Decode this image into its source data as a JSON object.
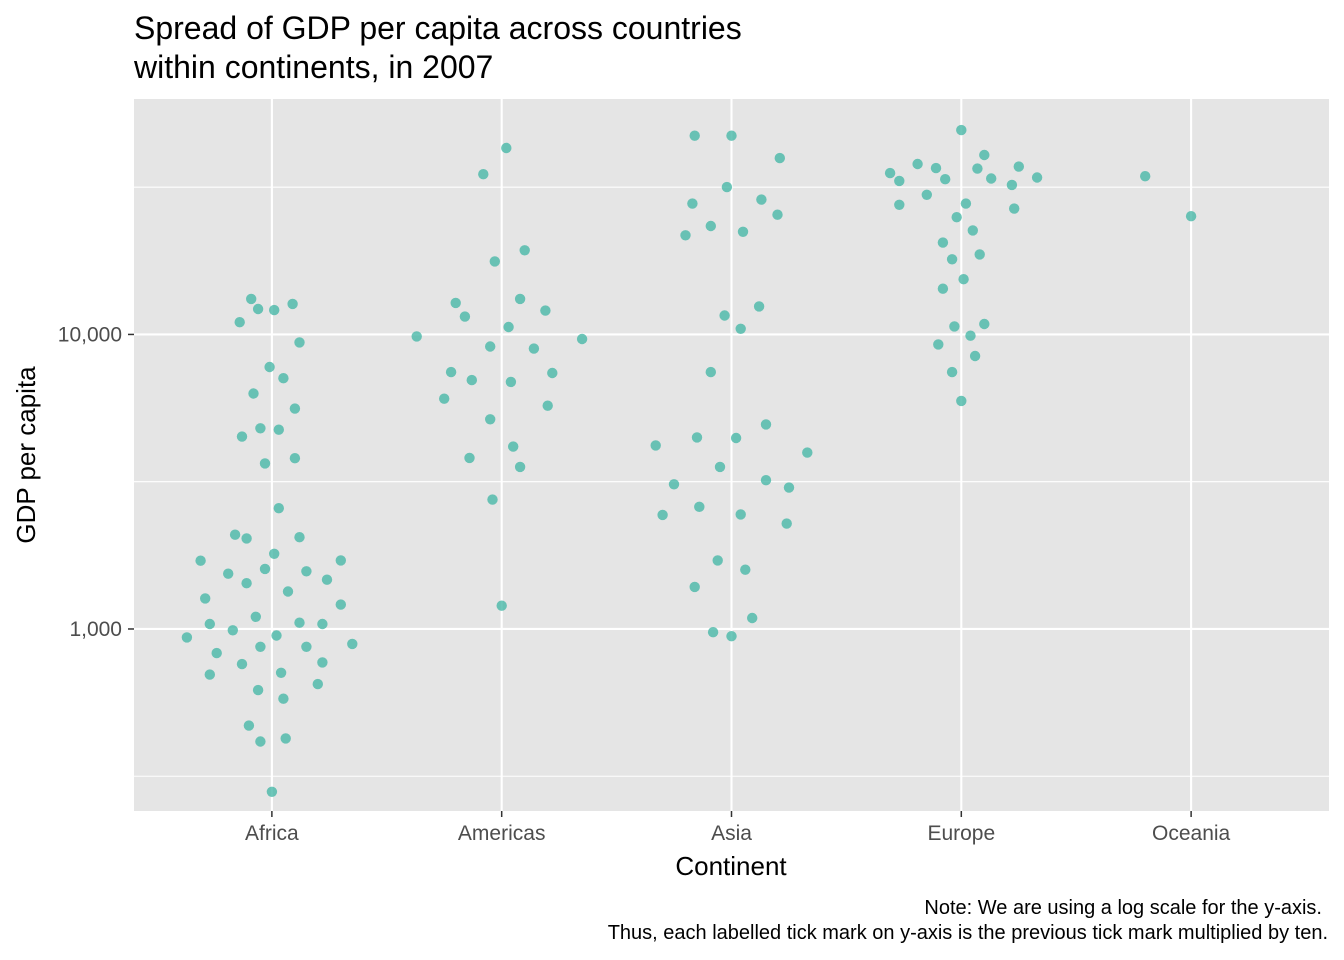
{
  "chart_data": {
    "type": "scatter",
    "title_line1": "Spread of GDP per capita across countries",
    "title_line2": "within continents, in 2007",
    "xlabel": "Continent",
    "ylabel": "GDP per capita",
    "y_scale": "log10",
    "ylim": [
      241,
      63000
    ],
    "y_major_ticks": [
      1000,
      10000
    ],
    "y_minor_ticks": [
      316.2,
      3162.3,
      31622.8
    ],
    "y_tick_labels": [
      "1,000",
      "10,000"
    ],
    "categories": [
      "Africa",
      "Americas",
      "Asia",
      "Europe",
      "Oceania"
    ],
    "point_color": "#3db4a3",
    "panel_background": "#e5e5e5",
    "grid": true,
    "jitter": true,
    "points": [
      {
        "continent": "Africa",
        "offset": -0.37,
        "gdp": 936
      },
      {
        "continent": "Africa",
        "offset": -0.31,
        "gdp": 1705
      },
      {
        "continent": "Africa",
        "offset": -0.29,
        "gdp": 1270
      },
      {
        "continent": "Africa",
        "offset": -0.27,
        "gdp": 1040
      },
      {
        "continent": "Africa",
        "offset": -0.27,
        "gdp": 700
      },
      {
        "continent": "Africa",
        "offset": -0.24,
        "gdp": 828
      },
      {
        "continent": "Africa",
        "offset": -0.19,
        "gdp": 1540
      },
      {
        "continent": "Africa",
        "offset": -0.17,
        "gdp": 990
      },
      {
        "continent": "Africa",
        "offset": -0.16,
        "gdp": 2090
      },
      {
        "continent": "Africa",
        "offset": -0.14,
        "gdp": 11000
      },
      {
        "continent": "Africa",
        "offset": -0.13,
        "gdp": 4500
      },
      {
        "continent": "Africa",
        "offset": -0.13,
        "gdp": 760
      },
      {
        "continent": "Africa",
        "offset": -0.11,
        "gdp": 2030
      },
      {
        "continent": "Africa",
        "offset": -0.11,
        "gdp": 1430
      },
      {
        "continent": "Africa",
        "offset": -0.1,
        "gdp": 470
      },
      {
        "continent": "Africa",
        "offset": -0.09,
        "gdp": 13200
      },
      {
        "continent": "Africa",
        "offset": -0.08,
        "gdp": 6300
      },
      {
        "continent": "Africa",
        "offset": -0.07,
        "gdp": 1100
      },
      {
        "continent": "Africa",
        "offset": -0.06,
        "gdp": 12200
      },
      {
        "continent": "Africa",
        "offset": -0.06,
        "gdp": 620
      },
      {
        "continent": "Africa",
        "offset": -0.05,
        "gdp": 4800
      },
      {
        "continent": "Africa",
        "offset": -0.05,
        "gdp": 870
      },
      {
        "continent": "Africa",
        "offset": -0.05,
        "gdp": 415
      },
      {
        "continent": "Africa",
        "offset": -0.03,
        "gdp": 3650
      },
      {
        "continent": "Africa",
        "offset": -0.03,
        "gdp": 1600
      },
      {
        "continent": "Africa",
        "offset": -0.01,
        "gdp": 7750
      },
      {
        "continent": "Africa",
        "offset": 0.0,
        "gdp": 280
      },
      {
        "continent": "Africa",
        "offset": 0.01,
        "gdp": 12100
      },
      {
        "continent": "Africa",
        "offset": 0.01,
        "gdp": 1800
      },
      {
        "continent": "Africa",
        "offset": 0.02,
        "gdp": 950
      },
      {
        "continent": "Africa",
        "offset": 0.03,
        "gdp": 4750
      },
      {
        "continent": "Africa",
        "offset": 0.03,
        "gdp": 2570
      },
      {
        "continent": "Africa",
        "offset": 0.04,
        "gdp": 710
      },
      {
        "continent": "Africa",
        "offset": 0.05,
        "gdp": 7100
      },
      {
        "continent": "Africa",
        "offset": 0.05,
        "gdp": 580
      },
      {
        "continent": "Africa",
        "offset": 0.06,
        "gdp": 425
      },
      {
        "continent": "Africa",
        "offset": 0.07,
        "gdp": 1340
      },
      {
        "continent": "Africa",
        "offset": 0.09,
        "gdp": 12700
      },
      {
        "continent": "Africa",
        "offset": 0.1,
        "gdp": 5600
      },
      {
        "continent": "Africa",
        "offset": 0.1,
        "gdp": 3800
      },
      {
        "continent": "Africa",
        "offset": 0.12,
        "gdp": 9400
      },
      {
        "continent": "Africa",
        "offset": 0.12,
        "gdp": 2050
      },
      {
        "continent": "Africa",
        "offset": 0.12,
        "gdp": 1050
      },
      {
        "continent": "Africa",
        "offset": 0.15,
        "gdp": 1570
      },
      {
        "continent": "Africa",
        "offset": 0.15,
        "gdp": 870
      },
      {
        "continent": "Africa",
        "offset": 0.2,
        "gdp": 650
      },
      {
        "continent": "Africa",
        "offset": 0.22,
        "gdp": 1040
      },
      {
        "continent": "Africa",
        "offset": 0.22,
        "gdp": 770
      },
      {
        "continent": "Africa",
        "offset": 0.24,
        "gdp": 1470
      },
      {
        "continent": "Africa",
        "offset": 0.3,
        "gdp": 1210
      },
      {
        "continent": "Africa",
        "offset": 0.3,
        "gdp": 1710
      },
      {
        "continent": "Africa",
        "offset": 0.35,
        "gdp": 890
      },
      {
        "continent": "Americas",
        "offset": -0.37,
        "gdp": 9850
      },
      {
        "continent": "Americas",
        "offset": -0.25,
        "gdp": 6050
      },
      {
        "continent": "Americas",
        "offset": -0.22,
        "gdp": 7450
      },
      {
        "continent": "Americas",
        "offset": -0.2,
        "gdp": 12800
      },
      {
        "continent": "Americas",
        "offset": -0.16,
        "gdp": 11500
      },
      {
        "continent": "Americas",
        "offset": -0.14,
        "gdp": 3810
      },
      {
        "continent": "Americas",
        "offset": -0.13,
        "gdp": 7000
      },
      {
        "continent": "Americas",
        "offset": -0.08,
        "gdp": 35000
      },
      {
        "continent": "Americas",
        "offset": -0.05,
        "gdp": 9100
      },
      {
        "continent": "Americas",
        "offset": -0.05,
        "gdp": 5150
      },
      {
        "continent": "Americas",
        "offset": -0.04,
        "gdp": 2750
      },
      {
        "continent": "Americas",
        "offset": -0.03,
        "gdp": 17700
      },
      {
        "continent": "Americas",
        "offset": 0.0,
        "gdp": 1200
      },
      {
        "continent": "Americas",
        "offset": 0.02,
        "gdp": 42950
      },
      {
        "continent": "Americas",
        "offset": 0.03,
        "gdp": 10600
      },
      {
        "continent": "Americas",
        "offset": 0.04,
        "gdp": 6900
      },
      {
        "continent": "Americas",
        "offset": 0.05,
        "gdp": 4160
      },
      {
        "continent": "Americas",
        "offset": 0.08,
        "gdp": 3550
      },
      {
        "continent": "Americas",
        "offset": 0.08,
        "gdp": 13200
      },
      {
        "continent": "Americas",
        "offset": 0.1,
        "gdp": 19300
      },
      {
        "continent": "Americas",
        "offset": 0.14,
        "gdp": 8950
      },
      {
        "continent": "Americas",
        "offset": 0.19,
        "gdp": 12050
      },
      {
        "continent": "Americas",
        "offset": 0.2,
        "gdp": 5730
      },
      {
        "continent": "Americas",
        "offset": 0.22,
        "gdp": 7400
      },
      {
        "continent": "Americas",
        "offset": 0.35,
        "gdp": 9650
      },
      {
        "continent": "Asia",
        "offset": -0.33,
        "gdp": 4200
      },
      {
        "continent": "Asia",
        "offset": -0.3,
        "gdp": 2440
      },
      {
        "continent": "Asia",
        "offset": -0.25,
        "gdp": 3100
      },
      {
        "continent": "Asia",
        "offset": -0.2,
        "gdp": 21700
      },
      {
        "continent": "Asia",
        "offset": -0.17,
        "gdp": 27800
      },
      {
        "continent": "Asia",
        "offset": -0.16,
        "gdp": 47300
      },
      {
        "continent": "Asia",
        "offset": -0.16,
        "gdp": 1390
      },
      {
        "continent": "Asia",
        "offset": -0.15,
        "gdp": 4470
      },
      {
        "continent": "Asia",
        "offset": -0.14,
        "gdp": 2600
      },
      {
        "continent": "Asia",
        "offset": -0.09,
        "gdp": 7450
      },
      {
        "continent": "Asia",
        "offset": -0.09,
        "gdp": 23350
      },
      {
        "continent": "Asia",
        "offset": -0.08,
        "gdp": 975
      },
      {
        "continent": "Asia",
        "offset": -0.06,
        "gdp": 1710
      },
      {
        "continent": "Asia",
        "offset": -0.05,
        "gdp": 3550
      },
      {
        "continent": "Asia",
        "offset": -0.03,
        "gdp": 11600
      },
      {
        "continent": "Asia",
        "offset": -0.02,
        "gdp": 31650
      },
      {
        "continent": "Asia",
        "offset": 0.0,
        "gdp": 945
      },
      {
        "continent": "Asia",
        "offset": 0.0,
        "gdp": 47300
      },
      {
        "continent": "Asia",
        "offset": 0.02,
        "gdp": 4450
      },
      {
        "continent": "Asia",
        "offset": 0.04,
        "gdp": 2450
      },
      {
        "continent": "Asia",
        "offset": 0.04,
        "gdp": 10450
      },
      {
        "continent": "Asia",
        "offset": 0.05,
        "gdp": 22300
      },
      {
        "continent": "Asia",
        "offset": 0.06,
        "gdp": 1590
      },
      {
        "continent": "Asia",
        "offset": 0.09,
        "gdp": 1090
      },
      {
        "continent": "Asia",
        "offset": 0.12,
        "gdp": 12450
      },
      {
        "continent": "Asia",
        "offset": 0.13,
        "gdp": 28700
      },
      {
        "continent": "Asia",
        "offset": 0.15,
        "gdp": 3200
      },
      {
        "continent": "Asia",
        "offset": 0.15,
        "gdp": 4950
      },
      {
        "continent": "Asia",
        "offset": 0.2,
        "gdp": 25500
      },
      {
        "continent": "Asia",
        "offset": 0.21,
        "gdp": 39700
      },
      {
        "continent": "Asia",
        "offset": 0.24,
        "gdp": 2280
      },
      {
        "continent": "Asia",
        "offset": 0.25,
        "gdp": 3020
      },
      {
        "continent": "Asia",
        "offset": 0.33,
        "gdp": 3970
      },
      {
        "continent": "Europe",
        "offset": -0.31,
        "gdp": 35300
      },
      {
        "continent": "Europe",
        "offset": -0.27,
        "gdp": 33200
      },
      {
        "continent": "Europe",
        "offset": -0.27,
        "gdp": 27550
      },
      {
        "continent": "Europe",
        "offset": -0.19,
        "gdp": 37900
      },
      {
        "continent": "Europe",
        "offset": -0.15,
        "gdp": 29800
      },
      {
        "continent": "Europe",
        "offset": -0.11,
        "gdp": 36700
      },
      {
        "continent": "Europe",
        "offset": -0.1,
        "gdp": 9250
      },
      {
        "continent": "Europe",
        "offset": -0.08,
        "gdp": 20500
      },
      {
        "continent": "Europe",
        "offset": -0.08,
        "gdp": 14300
      },
      {
        "continent": "Europe",
        "offset": -0.07,
        "gdp": 33650
      },
      {
        "continent": "Europe",
        "offset": -0.04,
        "gdp": 18000
      },
      {
        "continent": "Europe",
        "offset": -0.04,
        "gdp": 7450
      },
      {
        "continent": "Europe",
        "offset": -0.02,
        "gdp": 25000
      },
      {
        "continent": "Europe",
        "offset": -0.03,
        "gdp": 10650
      },
      {
        "continent": "Europe",
        "offset": 0.0,
        "gdp": 49400
      },
      {
        "continent": "Europe",
        "offset": 0.0,
        "gdp": 5950
      },
      {
        "continent": "Europe",
        "offset": 0.01,
        "gdp": 15400
      },
      {
        "continent": "Europe",
        "offset": 0.02,
        "gdp": 27800
      },
      {
        "continent": "Europe",
        "offset": 0.04,
        "gdp": 9900
      },
      {
        "continent": "Europe",
        "offset": 0.05,
        "gdp": 22550
      },
      {
        "continent": "Europe",
        "offset": 0.06,
        "gdp": 8450
      },
      {
        "continent": "Europe",
        "offset": 0.07,
        "gdp": 36550
      },
      {
        "continent": "Europe",
        "offset": 0.08,
        "gdp": 18700
      },
      {
        "continent": "Europe",
        "offset": 0.1,
        "gdp": 10850
      },
      {
        "continent": "Europe",
        "offset": 0.1,
        "gdp": 40650
      },
      {
        "continent": "Europe",
        "offset": 0.13,
        "gdp": 33850
      },
      {
        "continent": "Europe",
        "offset": 0.22,
        "gdp": 32200
      },
      {
        "continent": "Europe",
        "offset": 0.23,
        "gdp": 26750
      },
      {
        "continent": "Europe",
        "offset": 0.25,
        "gdp": 37150
      },
      {
        "continent": "Europe",
        "offset": 0.33,
        "gdp": 34100
      },
      {
        "continent": "Oceania",
        "offset": -0.2,
        "gdp": 34450
      },
      {
        "continent": "Oceania",
        "offset": 0.0,
        "gdp": 25200
      }
    ]
  },
  "caption_line1": "Note: We are using a log scale for the y-axis.",
  "caption_line2": "Thus, each labelled tick mark on y-axis is the previous tick mark multiplied by ten."
}
